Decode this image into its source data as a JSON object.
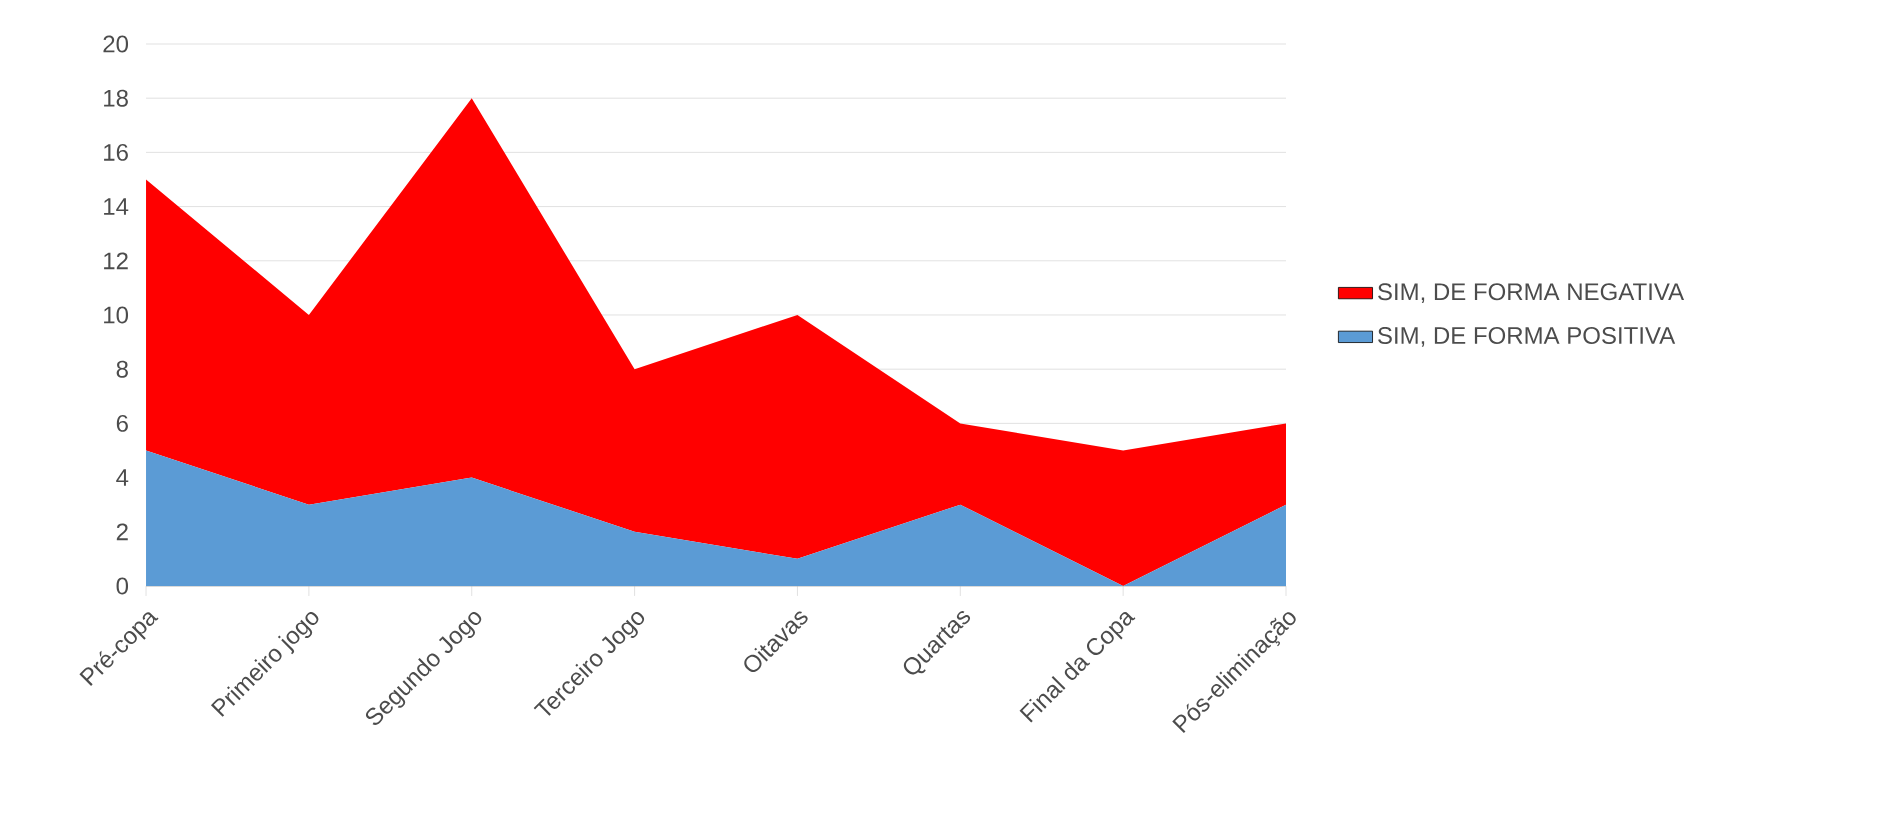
{
  "chart_data": {
    "type": "area",
    "stacked": true,
    "categories": [
      "Pré-copa",
      "Primeiro jogo",
      "Segundo Jogo",
      "Terceiro Jogo",
      "Oitavas",
      "Quartas",
      "Final da Copa",
      "Pós-eliminação"
    ],
    "series": [
      {
        "name": "SIM, DE FORMA POSITIVA",
        "color": "#5b9bd5",
        "values": [
          5,
          3,
          4,
          2,
          1,
          3,
          0,
          3
        ]
      },
      {
        "name": "SIM, DE FORMA NEGATIVA",
        "color": "#ff0000",
        "values": [
          10,
          7,
          14,
          6,
          9,
          3,
          5,
          3
        ]
      }
    ],
    "ylim": [
      0,
      20
    ],
    "yticks": [
      0,
      2,
      4,
      6,
      8,
      10,
      12,
      14,
      16,
      18,
      20
    ],
    "grid": "y",
    "legend": "right"
  }
}
